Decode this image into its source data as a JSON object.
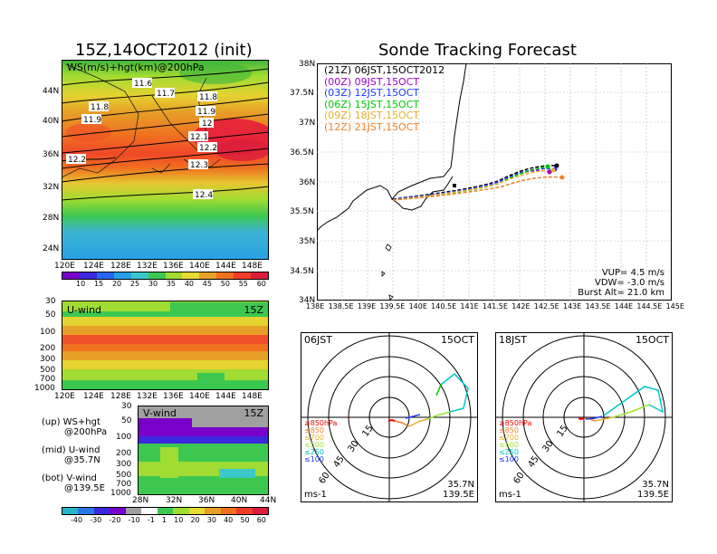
{
  "left_panel": {
    "title": "15Z,14OCT2012 (init)",
    "top_map": {
      "label": "WS(m/s)+hgt(km)@200hPa",
      "lat_ticks": [
        "44N",
        "40N",
        "36N",
        "32N",
        "28N",
        "24N"
      ],
      "lon_ticks": [
        "120E",
        "124E",
        "128E",
        "132E",
        "136E",
        "140E",
        "144E",
        "148E"
      ],
      "contour_labels": [
        "11.6",
        "11.7",
        "11.8",
        "11.8",
        "11.9",
        "11.9",
        "12",
        "12.1",
        "12.2",
        "12.2",
        "12.3",
        "12.4"
      ]
    },
    "ws_colorbar": [
      "10",
      "15",
      "20",
      "25",
      "30",
      "35",
      "40",
      "45",
      "50",
      "55",
      "60"
    ],
    "u_panel": {
      "label": "U-wind",
      "time": "15Z",
      "p_ticks": [
        "30",
        "50",
        "100",
        "200",
        "300",
        "500",
        "700",
        "1000"
      ],
      "lon_ticks": [
        "120E",
        "124E",
        "128E",
        "132E",
        "136E",
        "140E",
        "144E",
        "148E"
      ]
    },
    "v_panel": {
      "label": "V-wind",
      "time": "15Z",
      "p_ticks": [
        "30",
        "50",
        "100",
        "200",
        "300",
        "500",
        "700",
        "1000"
      ],
      "lat_ticks": [
        "28N",
        "32N",
        "36N",
        "40N",
        "44N"
      ]
    },
    "legend": [
      {
        "line1": "(up) WS+hgt",
        "line2": "@200hPa"
      },
      {
        "line1": "(mid) U-wind",
        "line2": "@35.7N"
      },
      {
        "line1": "(bot) V-wind",
        "line2": "@139.5E"
      }
    ],
    "wind_colorbar": [
      "-40",
      "-30",
      "-20",
      "-10",
      "-1",
      "1",
      "10",
      "20",
      "30",
      "40",
      "50",
      "60"
    ]
  },
  "right_panel": {
    "title": "Sonde Tracking Forecast",
    "map": {
      "lat_ticks": [
        "38N",
        "37.5N",
        "37N",
        "36.5N",
        "36N",
        "35.5N",
        "35N",
        "34.5N",
        "34N"
      ],
      "lon_ticks": [
        "138E",
        "138.5E",
        "139E",
        "139.5E",
        "140E",
        "140.5E",
        "141E",
        "141.5E",
        "142E",
        "142.5E",
        "143E",
        "143.5E",
        "144E",
        "144.5E",
        "145E"
      ],
      "tracks": [
        {
          "z": "(21Z)",
          "time": "06JST,15OCT2012",
          "color": "#000000"
        },
        {
          "z": "(00Z)",
          "time": "09JST,15OCT",
          "color": "#a000c8"
        },
        {
          "z": "(03Z)",
          "time": "12JST,15OCT",
          "color": "#1e3cff"
        },
        {
          "z": "(06Z)",
          "time": "15JST,15OCT",
          "color": "#00c800"
        },
        {
          "z": "(09Z)",
          "time": "18JST,15OCT",
          "color": "#e6af2d"
        },
        {
          "z": "(12Z)",
          "time": "21JST,15OCT",
          "color": "#f08228"
        }
      ],
      "vup": "VUP= 4.5 m/s",
      "vdw": "VDW= -3.0 m/s",
      "burst": "Burst Alt= 21.0 km"
    },
    "hodographs": [
      {
        "time": "06JST",
        "date": "15OCT",
        "rings": [
          "15",
          "30",
          "45",
          "60"
        ],
        "levels": [
          "≥850hPa",
          "≤850",
          "≤700",
          "≤500",
          "≤250",
          "≤100"
        ],
        "level_colors": [
          "#f00000",
          "#f08228",
          "#e6af2d",
          "#a0e632",
          "#00c8c8",
          "#1e3cff"
        ],
        "loc_lat": "35.7N",
        "loc_lon": "139.5E",
        "units": "ms-1"
      },
      {
        "time": "18JST",
        "date": "15OCT",
        "rings": [
          "15",
          "30",
          "45",
          "60"
        ],
        "levels": [
          "≥850hPa",
          "≤850",
          "≤700",
          "≤500",
          "≤250",
          "≤100"
        ],
        "level_colors": [
          "#f00000",
          "#f08228",
          "#e6af2d",
          "#a0e632",
          "#00c8c8",
          "#1e3cff"
        ],
        "loc_lat": "35.7N",
        "loc_lon": "139.5E",
        "units": "ms-1"
      }
    ]
  }
}
